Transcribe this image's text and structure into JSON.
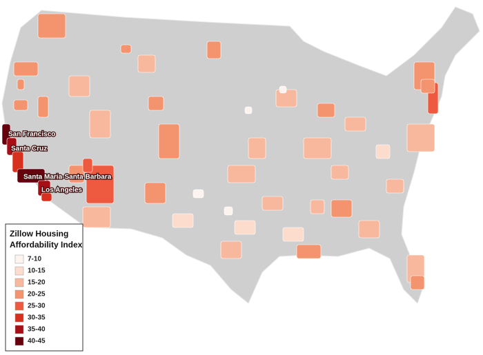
{
  "legend": {
    "title": [
      "Zillow Housing",
      "Affordability Index"
    ],
    "items": [
      {
        "label": "7-10",
        "color": "#fdf4ef"
      },
      {
        "label": "10-15",
        "color": "#fbdccd"
      },
      {
        "label": "15-20",
        "color": "#f8b89e"
      },
      {
        "label": "20-25",
        "color": "#f4946f"
      },
      {
        "label": "25-30",
        "color": "#ee5a3f"
      },
      {
        "label": "30-35",
        "color": "#d7301f"
      },
      {
        "label": "35-40",
        "color": "#a50f15"
      },
      {
        "label": "40-45",
        "color": "#67000d"
      }
    ]
  },
  "labels": [
    "San Francisco",
    "Santa Cruz",
    "Santa Maria-Santa Barbara",
    "Los Angeles"
  ]
}
